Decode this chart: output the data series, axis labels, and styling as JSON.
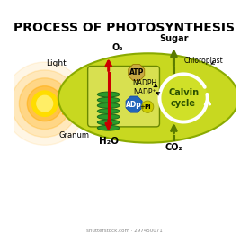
{
  "title": "PROCESS OF PHOTOSYNTHESIS",
  "title_fontsize": 10,
  "title_fontweight": "bold",
  "bg_color": "#ffffff",
  "chloroplast_color": "#c8d820",
  "chloroplast_outline": "#8aaa00",
  "thylakoid_bg": "#d0d855",
  "thylakoid_outline": "#7a9900",
  "granum_color": "#2a9a2a",
  "granum_outline": "#1a6a1a",
  "sun_color": "#ffaa00",
  "sun_inner": "#ffdd00",
  "arrow_red": "#cc0000",
  "arrow_green": "#5a7a00",
  "atp_color": "#c8aa44",
  "adp_color": "#2266bb",
  "pi_color": "#cccc00",
  "labels": {
    "light": "Light",
    "o2": "O₂",
    "h2o": "H₂O",
    "sugar": "Sugar",
    "co2": "CO₂",
    "granum": "Granum",
    "chloroplast": "Chloroplast",
    "atp": "ATP",
    "nadph": "NADPH",
    "nadp": "NADP⁺",
    "adp": "ADp",
    "pi": "Pi",
    "calvin": "Calvin\ncycle"
  },
  "watermark": "shutterstock.com · 297450071"
}
